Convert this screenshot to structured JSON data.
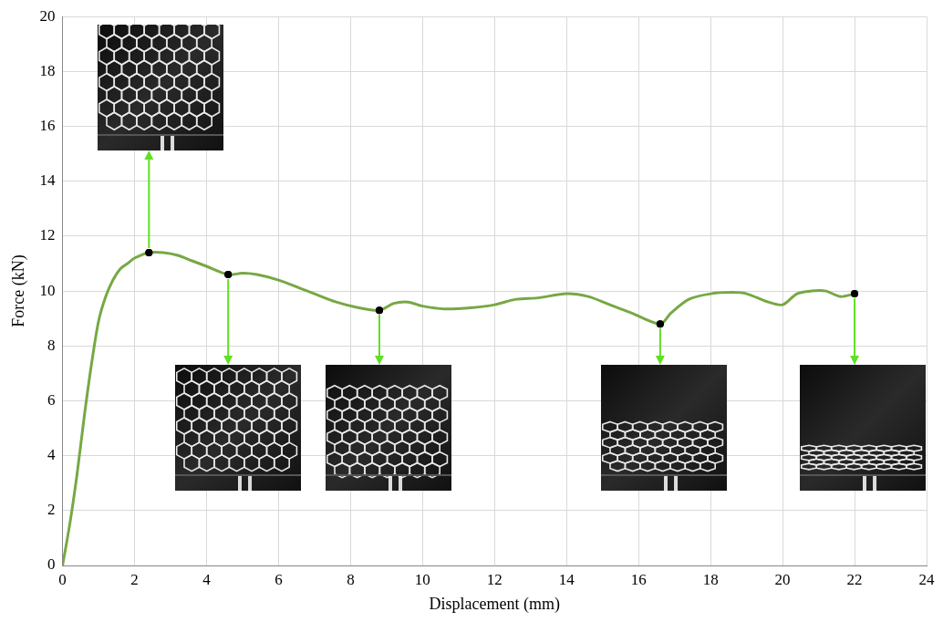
{
  "chart_data": {
    "type": "line",
    "x_label": "Displacement (mm)",
    "y_label": "Force (kN)",
    "xlim": [
      0,
      24
    ],
    "xticks": [
      0,
      2,
      4,
      6,
      8,
      10,
      12,
      14,
      16,
      18,
      20,
      22,
      24
    ],
    "ylim": [
      0,
      20
    ],
    "yticks": [
      0,
      2,
      4,
      6,
      8,
      10,
      12,
      14,
      16,
      18,
      20
    ],
    "grid": true,
    "series": [
      {
        "type": "line",
        "color": "#77a844",
        "x": [
          0,
          0.2,
          0.4,
          0.6,
          0.8,
          1.0,
          1.2,
          1.4,
          1.6,
          1.8,
          2.0,
          2.4,
          2.8,
          3.2,
          3.6,
          4.0,
          4.6,
          5.0,
          5.4,
          6.0,
          6.6,
          7.0,
          7.6,
          8.2,
          8.8,
          9.2,
          9.6,
          10.0,
          10.6,
          11.4,
          12.0,
          12.6,
          13.2,
          14.0,
          14.6,
          15.2,
          15.8,
          16.6,
          16.9,
          17.4,
          18.0,
          18.6,
          19.0,
          19.6,
          20.0,
          20.4,
          20.8,
          21.2,
          21.6,
          22.0
        ],
        "values": [
          0,
          1.5,
          3.3,
          5.4,
          7.3,
          8.9,
          9.8,
          10.4,
          10.8,
          11.0,
          11.2,
          11.4,
          11.4,
          11.3,
          11.1,
          10.9,
          10.6,
          10.65,
          10.6,
          10.4,
          10.1,
          9.9,
          9.6,
          9.4,
          9.3,
          9.55,
          9.6,
          9.45,
          9.35,
          9.4,
          9.5,
          9.7,
          9.75,
          9.9,
          9.8,
          9.5,
          9.2,
          8.8,
          9.2,
          9.7,
          9.9,
          9.95,
          9.9,
          9.6,
          9.5,
          9.9,
          10.0,
          10.0,
          9.8,
          9.9
        ]
      },
      {
        "type": "scatter",
        "marker": "circle",
        "color": "#000000",
        "x": [
          2.4,
          4.6,
          8.8,
          16.6,
          22.0
        ],
        "values": [
          11.4,
          10.6,
          9.3,
          8.8,
          9.9
        ]
      }
    ]
  }
}
